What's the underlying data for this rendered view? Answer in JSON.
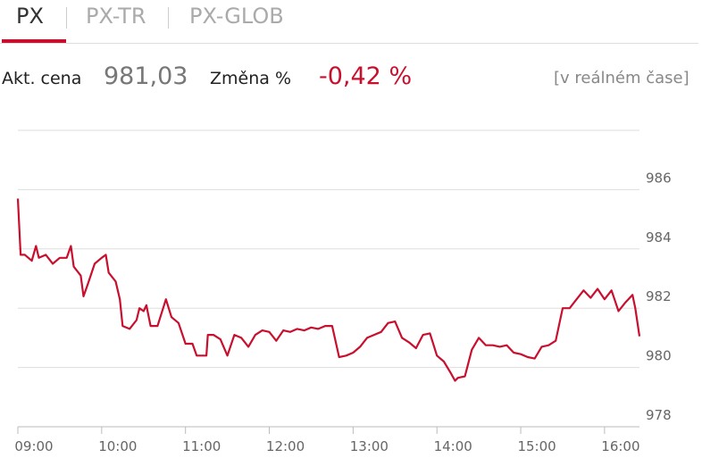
{
  "tabs": [
    "PX",
    "PX-TR",
    "PX-GLOB"
  ],
  "quote": {
    "price_label": "Akt. cena",
    "price": "981,03",
    "change_label": "Změna %",
    "change": "-0,42 %",
    "note": "[v reálném čase]"
  },
  "chart_data": {
    "type": "line",
    "color": "#c8102e",
    "grid": true,
    "ylim": [
      978,
      988
    ],
    "yticks": [
      978,
      980,
      982,
      984,
      986
    ],
    "xlim": [
      "09:00",
      "16:25"
    ],
    "xticks": [
      "09:00",
      "10:00",
      "11:00",
      "12:00",
      "13:00",
      "14:00",
      "15:00",
      "16:00"
    ],
    "x": [
      "09:00",
      "09:02",
      "09:05",
      "09:10",
      "09:13",
      "09:15",
      "09:20",
      "09:25",
      "09:30",
      "09:35",
      "09:38",
      "09:40",
      "09:45",
      "09:47",
      "09:50",
      "09:55",
      "10:00",
      "10:03",
      "10:05",
      "10:10",
      "10:13",
      "10:15",
      "10:20",
      "10:25",
      "10:27",
      "10:30",
      "10:32",
      "10:35",
      "10:40",
      "10:46",
      "10:50",
      "10:55",
      "11:00",
      "11:05",
      "11:08",
      "11:10",
      "11:15",
      "11:16",
      "11:20",
      "11:25",
      "11:30",
      "11:35",
      "11:40",
      "11:45",
      "11:50",
      "11:55",
      "12:00",
      "12:05",
      "12:10",
      "12:15",
      "12:20",
      "12:25",
      "12:30",
      "12:35",
      "12:40",
      "12:45",
      "12:50",
      "12:55",
      "13:00",
      "13:05",
      "13:10",
      "13:15",
      "13:20",
      "13:25",
      "13:30",
      "13:35",
      "13:40",
      "13:45",
      "13:50",
      "13:55",
      "14:00",
      "14:05",
      "14:10",
      "14:13",
      "14:15",
      "14:20",
      "14:25",
      "14:30",
      "14:35",
      "14:40",
      "14:45",
      "14:50",
      "14:55",
      "15:00",
      "15:05",
      "15:10",
      "15:15",
      "15:20",
      "15:25",
      "15:30",
      "15:35",
      "15:40",
      "15:45",
      "15:50",
      "15:55",
      "16:00",
      "16:05",
      "16:10",
      "16:15",
      "16:20",
      "16:22",
      "16:25"
    ],
    "series": [
      {
        "name": "PX",
        "values": [
          985.7,
          983.8,
          983.8,
          983.6,
          984.1,
          983.7,
          983.8,
          983.5,
          983.7,
          983.7,
          984.1,
          983.4,
          983.1,
          982.4,
          982.8,
          983.5,
          983.7,
          983.8,
          983.2,
          982.9,
          982.3,
          981.4,
          981.3,
          981.6,
          982.0,
          981.9,
          982.1,
          981.4,
          981.4,
          982.3,
          981.7,
          981.5,
          980.8,
          980.8,
          980.4,
          980.4,
          980.4,
          981.1,
          981.1,
          980.95,
          980.4,
          981.1,
          981.0,
          980.7,
          981.1,
          981.25,
          981.2,
          980.9,
          981.25,
          981.2,
          981.3,
          981.25,
          981.35,
          981.3,
          981.4,
          981.4,
          980.35,
          980.4,
          980.5,
          980.7,
          981.0,
          981.1,
          981.2,
          981.5,
          981.55,
          981.0,
          980.85,
          980.65,
          981.1,
          981.15,
          980.4,
          980.2,
          979.8,
          979.55,
          979.65,
          979.7,
          980.6,
          981.0,
          980.75,
          980.75,
          980.7,
          980.75,
          980.5,
          980.45,
          980.35,
          980.3,
          980.7,
          980.75,
          980.9,
          982.0,
          982.0,
          982.3,
          982.6,
          982.35,
          982.65,
          982.3,
          982.6,
          981.9,
          982.2,
          982.45,
          982.0,
          981.05
        ]
      }
    ]
  }
}
